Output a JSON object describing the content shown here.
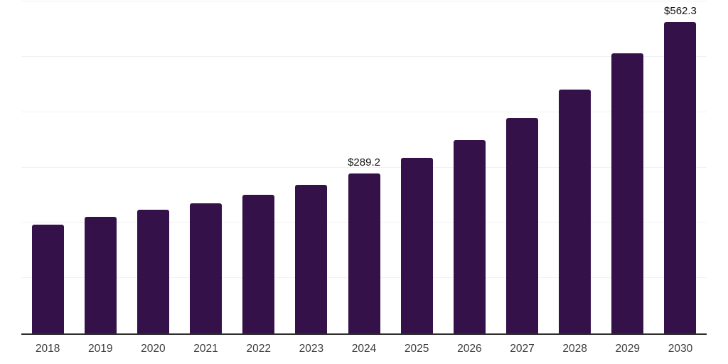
{
  "chart_data": {
    "type": "bar",
    "title": "",
    "xlabel": "",
    "ylabel": "",
    "categories": [
      "2018",
      "2019",
      "2020",
      "2021",
      "2022",
      "2023",
      "2024",
      "2025",
      "2026",
      "2027",
      "2028",
      "2029",
      "2030"
    ],
    "values": [
      197,
      211,
      223,
      235,
      250,
      269,
      289.2,
      317,
      350,
      389,
      441,
      506,
      562.3
    ],
    "labeled_points": [
      {
        "category": "2024",
        "label": "$289.2"
      },
      {
        "category": "2030",
        "label": "$562.3"
      }
    ],
    "ylim": [
      0,
      600
    ],
    "gridline_step": 100,
    "grid": true,
    "legend": false,
    "bar_color": "#35114A",
    "axis_line_color": "#2e2e2e",
    "gridline_color": "#f1f1f1",
    "tick_label_color": "#3c3c3c",
    "data_label_color": "#141414",
    "background": "#ffffff"
  }
}
